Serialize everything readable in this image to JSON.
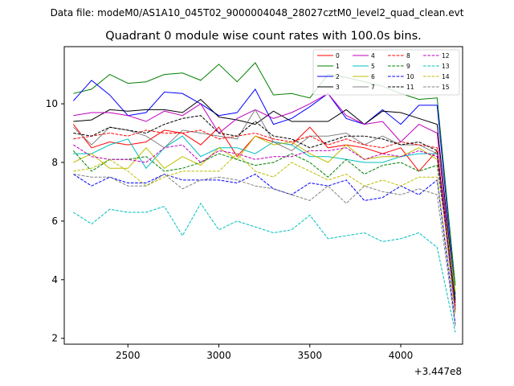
{
  "chart_data": {
    "type": "line",
    "suptitle": "Data file: modeM0/AS1A10_045T02_9000004048_28027cztM0_level2_quad_clean.evt",
    "title": "Quadrant 0 module wise count rates with 100.0s bins.",
    "xlabel": "",
    "ylabel": "",
    "x_offset_label": "+3.447e8",
    "xlim": [
      2150,
      4340
    ],
    "ylim": [
      1.8,
      11.95
    ],
    "xticks": [
      2500,
      3000,
      3500,
      4000
    ],
    "yticks": [
      2,
      4,
      6,
      8,
      10
    ],
    "x": [
      2200,
      2300,
      2400,
      2500,
      2600,
      2700,
      2800,
      2900,
      3000,
      3100,
      3200,
      3300,
      3400,
      3500,
      3600,
      3700,
      3800,
      3900,
      4000,
      4100,
      4200,
      4300
    ],
    "legend_position": "top-right",
    "legend_columns": 4,
    "series": [
      {
        "name": "0",
        "color": "#ff0000",
        "dash": "solid",
        "values": [
          9.3,
          8.5,
          8.7,
          8.6,
          8.7,
          9.1,
          9.0,
          8.6,
          9.2,
          8.2,
          8.9,
          8.7,
          8.6,
          9.2,
          8.5,
          8.6,
          8.5,
          8.3,
          8.5,
          7.7,
          8.4,
          3.2
        ]
      },
      {
        "name": "1",
        "color": "#008000",
        "dash": "solid",
        "values": [
          10.35,
          10.5,
          11.0,
          10.7,
          10.75,
          11.0,
          11.05,
          10.8,
          11.35,
          10.75,
          11.4,
          10.3,
          10.35,
          10.2,
          11.0,
          10.9,
          10.75,
          10.6,
          10.35,
          10.15,
          10.2,
          3.8
        ]
      },
      {
        "name": "2",
        "color": "#0000ff",
        "dash": "solid",
        "values": [
          10.1,
          10.8,
          10.3,
          9.6,
          9.7,
          10.4,
          10.35,
          10.0,
          9.6,
          9.7,
          10.5,
          9.3,
          9.5,
          9.9,
          10.35,
          9.5,
          9.3,
          9.8,
          9.3,
          9.95,
          9.95,
          3.5
        ]
      },
      {
        "name": "3",
        "color": "#000000",
        "dash": "solid",
        "values": [
          9.4,
          9.45,
          9.8,
          9.75,
          9.8,
          9.8,
          9.7,
          10.15,
          9.55,
          9.45,
          9.3,
          9.75,
          9.4,
          9.4,
          9.4,
          9.8,
          9.3,
          9.75,
          9.7,
          9.5,
          9.3,
          3.3
        ]
      },
      {
        "name": "4",
        "color": "#bf00bf",
        "dash": "solid",
        "values": [
          9.6,
          9.7,
          9.7,
          9.6,
          9.4,
          9.75,
          9.6,
          10.0,
          9.0,
          9.5,
          9.8,
          9.5,
          9.7,
          10.0,
          10.35,
          9.6,
          9.3,
          9.4,
          8.7,
          9.3,
          9.0,
          3.0
        ]
      },
      {
        "name": "5",
        "color": "#00bfbf",
        "dash": "solid",
        "values": [
          8.3,
          8.3,
          8.6,
          8.8,
          7.8,
          8.5,
          8.9,
          8.2,
          8.5,
          8.5,
          8.3,
          8.7,
          8.6,
          8.2,
          8.2,
          8.1,
          8.0,
          8.0,
          8.2,
          8.3,
          8.3,
          2.9
        ]
      },
      {
        "name": "6",
        "color": "#bfbf00",
        "dash": "solid",
        "values": [
          8.0,
          8.3,
          7.8,
          7.8,
          8.5,
          7.8,
          8.2,
          7.9,
          8.5,
          8.1,
          8.9,
          8.6,
          8.7,
          8.3,
          8.0,
          8.6,
          8.1,
          8.2,
          8.2,
          8.5,
          8.1,
          3.6
        ]
      },
      {
        "name": "7",
        "color": "#808080",
        "dash": "solid",
        "values": [
          9.2,
          8.6,
          9.2,
          9.1,
          8.9,
          8.5,
          9.1,
          9.0,
          8.9,
          8.8,
          9.8,
          8.7,
          8.4,
          8.9,
          8.9,
          9.0,
          8.6,
          8.9,
          8.6,
          8.6,
          8.3,
          3.0
        ]
      },
      {
        "name": "8",
        "color": "#ff0000",
        "dash": "dashed",
        "values": [
          8.8,
          8.9,
          9.0,
          8.9,
          9.1,
          9.0,
          9.0,
          9.1,
          8.8,
          8.9,
          9.0,
          8.8,
          8.7,
          8.9,
          8.6,
          8.8,
          8.6,
          8.5,
          8.7,
          8.6,
          8.5,
          2.9
        ]
      },
      {
        "name": "9",
        "color": "#008000",
        "dash": "dashed",
        "values": [
          8.4,
          7.7,
          8.1,
          8.1,
          8.2,
          7.7,
          7.8,
          8.0,
          8.3,
          8.1,
          7.9,
          8.0,
          8.3,
          8.0,
          7.5,
          8.1,
          7.6,
          7.9,
          8.0,
          7.7,
          7.9,
          3.4
        ]
      },
      {
        "name": "10",
        "color": "#0000ff",
        "dash": "dashed",
        "values": [
          7.6,
          7.2,
          7.5,
          7.3,
          7.3,
          7.6,
          7.4,
          7.4,
          7.4,
          7.3,
          7.6,
          7.1,
          6.9,
          7.3,
          7.2,
          7.4,
          6.7,
          6.8,
          7.2,
          6.9,
          7.4,
          2.5
        ]
      },
      {
        "name": "11",
        "color": "#000000",
        "dash": "dashed",
        "values": [
          9.0,
          8.9,
          9.2,
          9.1,
          9.0,
          9.3,
          9.5,
          9.6,
          9.0,
          8.9,
          9.4,
          8.9,
          8.8,
          8.5,
          8.7,
          8.9,
          8.9,
          8.8,
          8.6,
          8.7,
          8.4,
          3.1
        ]
      },
      {
        "name": "12",
        "color": "#bf00bf",
        "dash": "dashed",
        "values": [
          8.6,
          8.2,
          8.1,
          8.1,
          8.0,
          8.5,
          8.6,
          8.0,
          8.4,
          8.3,
          8.1,
          8.2,
          8.2,
          8.4,
          8.4,
          8.5,
          8.1,
          8.3,
          8.2,
          8.4,
          8.2,
          3.0
        ]
      },
      {
        "name": "13",
        "color": "#00bfbf",
        "dash": "dashed",
        "values": [
          6.3,
          5.9,
          6.4,
          6.3,
          6.3,
          6.5,
          5.5,
          6.6,
          5.7,
          6.0,
          5.8,
          5.6,
          5.7,
          6.2,
          5.4,
          5.5,
          5.6,
          5.3,
          5.4,
          5.6,
          5.1,
          2.2
        ]
      },
      {
        "name": "14",
        "color": "#bfbf00",
        "dash": "dashed",
        "values": [
          7.7,
          7.8,
          8.1,
          7.7,
          7.2,
          7.5,
          7.7,
          7.7,
          7.7,
          8.3,
          7.7,
          7.5,
          8.0,
          7.7,
          7.4,
          7.6,
          7.2,
          7.4,
          7.2,
          7.5,
          7.5,
          2.8
        ]
      },
      {
        "name": "15",
        "color": "#808080",
        "dash": "dashed",
        "values": [
          7.6,
          7.5,
          7.5,
          7.2,
          7.2,
          7.6,
          7.1,
          7.4,
          7.5,
          7.4,
          7.2,
          7.1,
          6.9,
          6.7,
          7.2,
          6.6,
          7.2,
          7.0,
          6.9,
          7.1,
          6.9,
          2.4
        ]
      }
    ]
  }
}
